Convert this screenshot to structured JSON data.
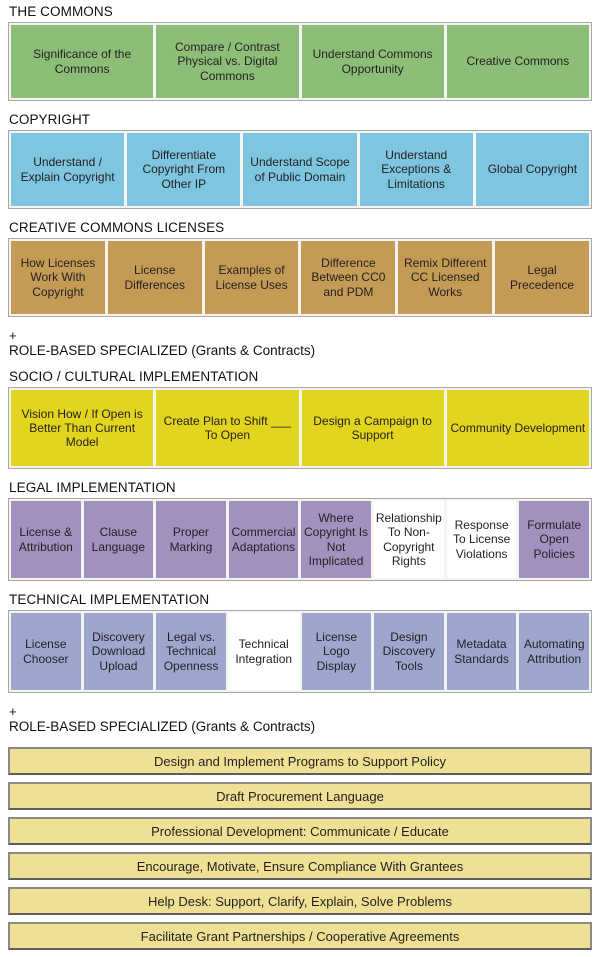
{
  "colors": {
    "green": "#8dbe78",
    "blue": "#7ec5e0",
    "tan": "#c49b55",
    "yellow": "#e3d41e",
    "purple": "#a291be",
    "periwinkle": "#9fa6ce",
    "paleYellow": "#efe194",
    "white": "#ffffff",
    "rowBorder": "#a6a6a6",
    "barBorder": "#8a8a8a"
  },
  "sections": {
    "commons": {
      "heading": "THE COMMONS",
      "cells": [
        "Significance of the Commons",
        "Compare / Contrast Physical vs. Digital Commons",
        "Understand Commons Opportunity",
        "Creative Commons"
      ]
    },
    "copyright": {
      "heading": "COPYRIGHT",
      "cells": [
        "Understand / Explain Copyright",
        "Differentiate Copyright From Other IP",
        "Understand Scope of Public Domain",
        "Understand Exceptions & Limitations",
        "Global Copyright"
      ]
    },
    "cc_licenses": {
      "heading": "CREATIVE COMMONS LICENSES",
      "cells": [
        "How Licenses Work With Copyright",
        "License Differences",
        "Examples of License Uses",
        "Difference Between CC0 and PDM",
        "Remix Different CC Licensed Works",
        "Legal Precedence"
      ]
    },
    "role_note_1": {
      "plus": "+",
      "label": "ROLE-BASED SPECIALIZED (Grants & Contracts)"
    },
    "socio": {
      "heading": "SOCIO / CULTURAL IMPLEMENTATION",
      "cells": [
        "Vision How / If Open is Better Than Current Model",
        "Create Plan to Shift ___ To Open",
        "Design a Campaign to Support",
        "Community Development"
      ]
    },
    "legal": {
      "heading": "LEGAL IMPLEMENTATION",
      "cells": [
        "License & Attribution",
        "Clause Language",
        "Proper Marking",
        "Commercial Adaptations",
        "Where Copyright Is Not Implicated",
        "Relationship To Non-Copyright Rights",
        "Response To License Violations",
        "Formulate Open Policies"
      ]
    },
    "technical": {
      "heading": "TECHNICAL IMPLEMENTATION",
      "cells": [
        "License Chooser",
        "Discovery Download Upload",
        "Legal vs. Technical Openness",
        "Technical Integration",
        "License Logo Display",
        "Design Discovery Tools",
        "Metadata Standards",
        "Automating Attribution"
      ]
    },
    "role_note_2": {
      "plus": "+",
      "label": "ROLE-BASED SPECIALIZED (Grants & Contracts)"
    },
    "role_bars": [
      "Design and Implement Programs to Support Policy",
      "Draft Procurement Language",
      "Professional Development: Communicate / Educate",
      "Encourage, Motivate, Ensure Compliance With Grantees",
      "Help Desk: Support, Clarify, Explain, Solve Problems",
      "Facilitate Grant Partnerships / Cooperative Agreements"
    ]
  }
}
